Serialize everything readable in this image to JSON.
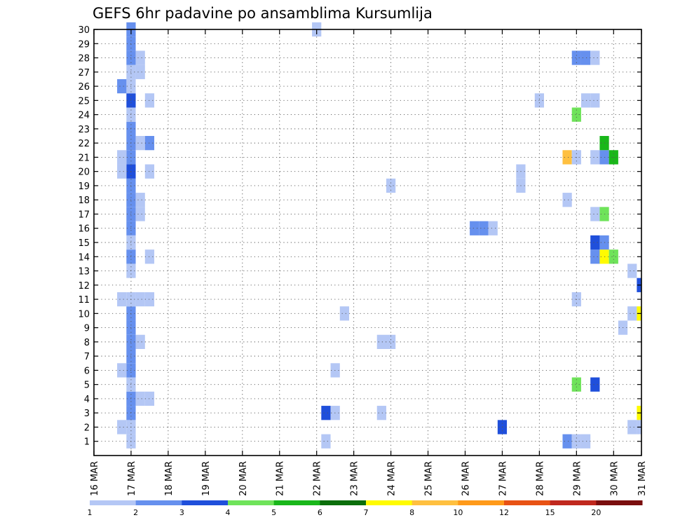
{
  "chart_data": {
    "type": "heatmap",
    "title": "GEFS 6hr padavine po ansamblima Kursumlija",
    "xlabel": "",
    "ylabel": "",
    "x_tick_labels": [
      "16 MAR",
      "17 MAR",
      "18 MAR",
      "19 MAR",
      "20 MAR",
      "21 MAR",
      "22 MAR",
      "23 MAR",
      "24 MAR",
      "25 MAR",
      "26 MAR",
      "27 MAR",
      "28 MAR",
      "29 MAR",
      "30 MAR",
      "31 MAR"
    ],
    "y_tick_labels": [
      "1",
      "2",
      "3",
      "4",
      "5",
      "6",
      "7",
      "8",
      "9",
      "10",
      "11",
      "12",
      "13",
      "14",
      "15",
      "16",
      "17",
      "18",
      "19",
      "20",
      "21",
      "22",
      "23",
      "24",
      "25",
      "26",
      "27",
      "28",
      "29",
      "30"
    ],
    "x_start": 16.0,
    "x_end": 30.75,
    "time_step_days": 0.25,
    "ylim": [
      0,
      30
    ],
    "grid": true,
    "legend_position": "bottom",
    "colorbar": {
      "labels": [
        "1",
        "2",
        "3",
        "4",
        "5",
        "6",
        "7",
        "8",
        "10",
        "12",
        "15",
        "20"
      ],
      "colors": [
        "#b4c7f5",
        "#6690ee",
        "#1f4fdb",
        "#6fe35a",
        "#19b71a",
        "#0b6e0b",
        "#fffb00",
        "#ffc040",
        "#ff9a1a",
        "#e85214",
        "#c0281e",
        "#7a0e0e"
      ]
    },
    "cells": [
      [
        17.0,
        1,
        1
      ],
      [
        17.0,
        2,
        1
      ],
      [
        17.0,
        3,
        2
      ],
      [
        17.0,
        4,
        2
      ],
      [
        17.0,
        5,
        1
      ],
      [
        17.0,
        6,
        2
      ],
      [
        17.0,
        7,
        2
      ],
      [
        17.0,
        8,
        2
      ],
      [
        17.0,
        9,
        2
      ],
      [
        17.0,
        10,
        2
      ],
      [
        17.0,
        11,
        1
      ],
      [
        17.0,
        13,
        1
      ],
      [
        17.0,
        14,
        2
      ],
      [
        17.0,
        15,
        1
      ],
      [
        17.0,
        16,
        2
      ],
      [
        17.0,
        17,
        2
      ],
      [
        17.0,
        18,
        2
      ],
      [
        17.0,
        19,
        2
      ],
      [
        17.0,
        20,
        3
      ],
      [
        17.0,
        21,
        2
      ],
      [
        17.0,
        22,
        2
      ],
      [
        17.0,
        23,
        2
      ],
      [
        17.0,
        24,
        1
      ],
      [
        17.0,
        25,
        3
      ],
      [
        17.0,
        26,
        1
      ],
      [
        17.0,
        27,
        1
      ],
      [
        17.0,
        28,
        2
      ],
      [
        17.0,
        29,
        2
      ],
      [
        17.0,
        30,
        2
      ],
      [
        16.75,
        2,
        1
      ],
      [
        16.75,
        6,
        1
      ],
      [
        16.75,
        11,
        1
      ],
      [
        16.75,
        20,
        1
      ],
      [
        16.75,
        21,
        1
      ],
      [
        16.75,
        26,
        2
      ],
      [
        17.25,
        4,
        1
      ],
      [
        17.25,
        8,
        1
      ],
      [
        17.25,
        11,
        1
      ],
      [
        17.25,
        17,
        1
      ],
      [
        17.25,
        18,
        1
      ],
      [
        17.25,
        22,
        1
      ],
      [
        17.25,
        27,
        1
      ],
      [
        17.25,
        28,
        1
      ],
      [
        17.5,
        4,
        1
      ],
      [
        17.5,
        11,
        1
      ],
      [
        17.5,
        14,
        1
      ],
      [
        17.5,
        20,
        1
      ],
      [
        17.5,
        22,
        2
      ],
      [
        17.5,
        25,
        1
      ],
      [
        22.0,
        30,
        1
      ],
      [
        22.25,
        1,
        1
      ],
      [
        22.25,
        3,
        3
      ],
      [
        22.5,
        3,
        1
      ],
      [
        22.5,
        6,
        1
      ],
      [
        22.75,
        10,
        1
      ],
      [
        23.75,
        3,
        1
      ],
      [
        23.75,
        8,
        1
      ],
      [
        24.0,
        8,
        1
      ],
      [
        24.0,
        19,
        1
      ],
      [
        26.25,
        16,
        2
      ],
      [
        26.5,
        16,
        2
      ],
      [
        26.75,
        16,
        1
      ],
      [
        27.0,
        2,
        3
      ],
      [
        27.5,
        20,
        1
      ],
      [
        27.5,
        19,
        1
      ],
      [
        28.0,
        25,
        1
      ],
      [
        28.75,
        1,
        2
      ],
      [
        29.0,
        1,
        1
      ],
      [
        29.25,
        1,
        1
      ],
      [
        29.0,
        5,
        4
      ],
      [
        29.5,
        5,
        3
      ],
      [
        29.0,
        11,
        1
      ],
      [
        28.75,
        18,
        1
      ],
      [
        28.75,
        21,
        8
      ],
      [
        29.0,
        21,
        1
      ],
      [
        29.5,
        21,
        1
      ],
      [
        29.75,
        21,
        2
      ],
      [
        30.0,
        21,
        5
      ],
      [
        29.75,
        22,
        5
      ],
      [
        29.0,
        24,
        4
      ],
      [
        29.25,
        25,
        1
      ],
      [
        29.5,
        25,
        1
      ],
      [
        29.0,
        28,
        2
      ],
      [
        29.25,
        28,
        2
      ],
      [
        29.5,
        28,
        1
      ],
      [
        29.5,
        14,
        2
      ],
      [
        29.75,
        14,
        7
      ],
      [
        30.0,
        14,
        4
      ],
      [
        29.5,
        15,
        3
      ],
      [
        29.75,
        15,
        2
      ],
      [
        29.5,
        17,
        1
      ],
      [
        29.75,
        17,
        4
      ],
      [
        30.25,
        9,
        1
      ],
      [
        30.5,
        10,
        1
      ],
      [
        30.75,
        10,
        7
      ],
      [
        30.75,
        12,
        3
      ],
      [
        30.5,
        13,
        1
      ],
      [
        30.75,
        3,
        7
      ],
      [
        30.5,
        2,
        1
      ],
      [
        30.75,
        2,
        1
      ]
    ]
  }
}
